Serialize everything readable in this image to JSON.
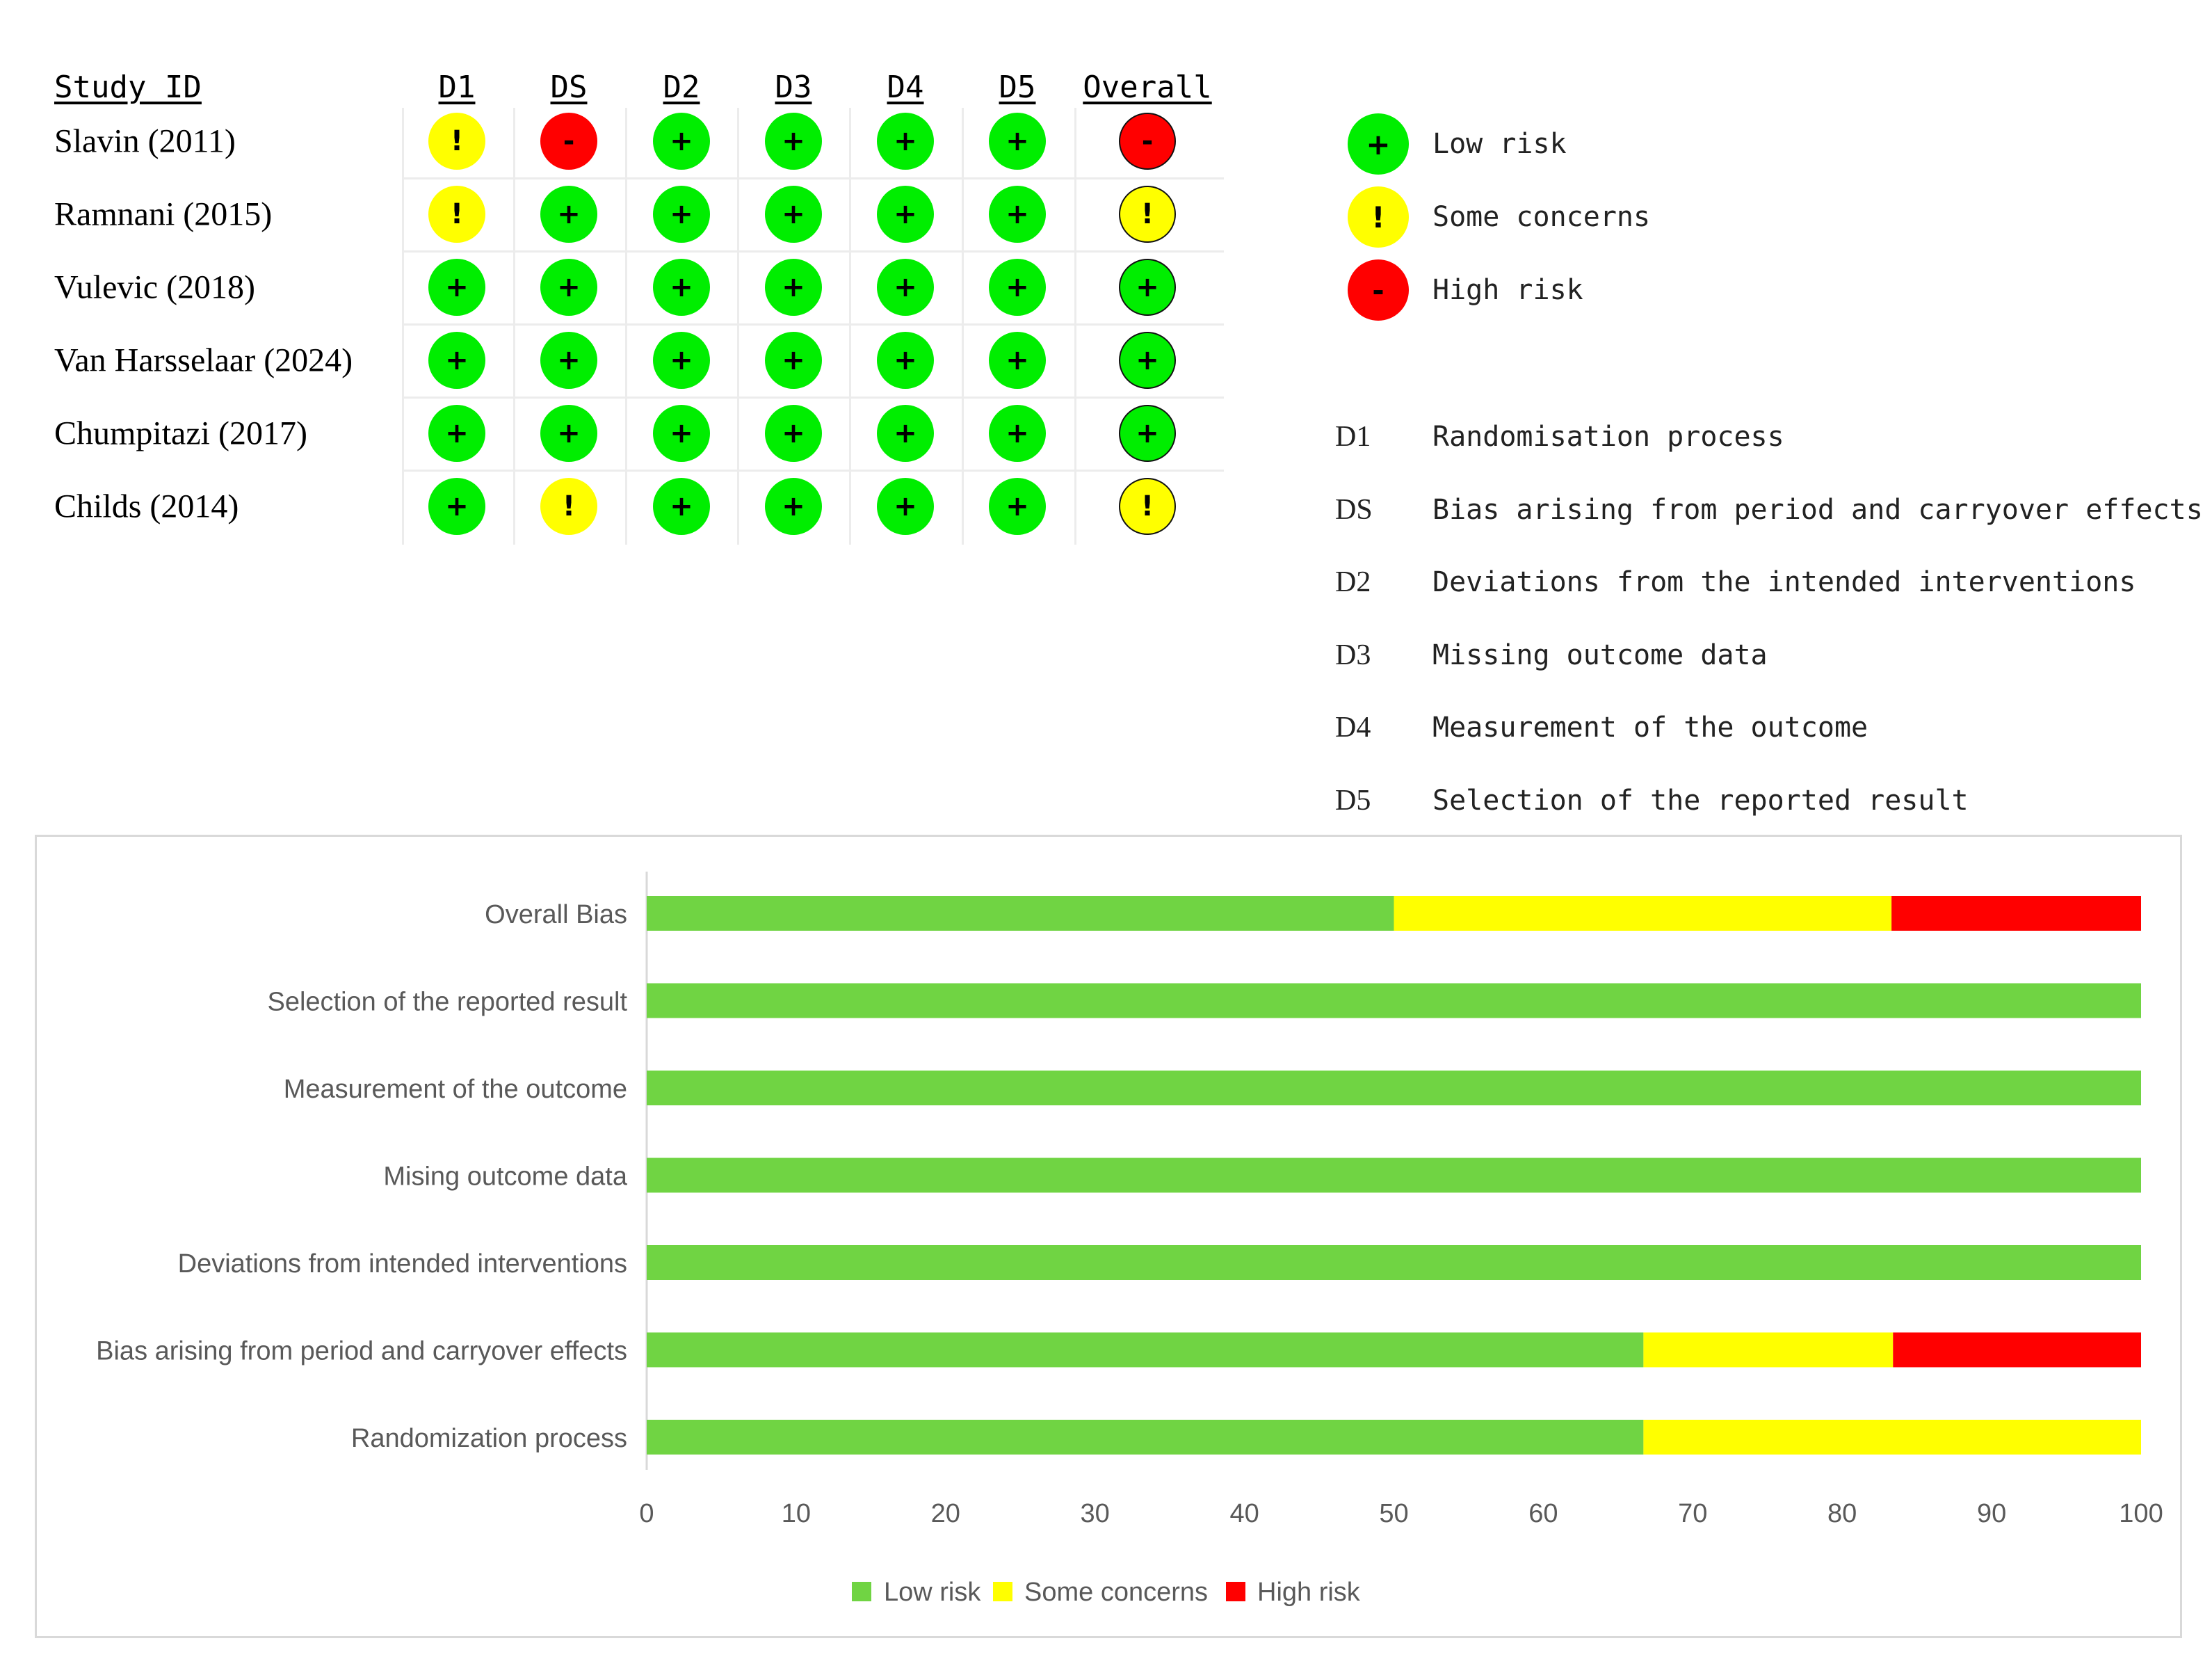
{
  "colors": {
    "low": "#00ee00",
    "some": "#ffff00",
    "high": "#ff0000"
  },
  "table": {
    "header": {
      "study_id": "Study ID"
    },
    "domains": [
      "D1",
      "DS",
      "D2",
      "D3",
      "D4",
      "D5",
      "Overall"
    ],
    "studies": [
      {
        "name": "Slavin (2011)",
        "judgements": [
          "some",
          "high",
          "low",
          "low",
          "low",
          "low",
          "high"
        ]
      },
      {
        "name": "Ramnani (2015)",
        "judgements": [
          "some",
          "low",
          "low",
          "low",
          "low",
          "low",
          "some"
        ]
      },
      {
        "name": "Vulevic (2018)",
        "judgements": [
          "low",
          "low",
          "low",
          "low",
          "low",
          "low",
          "low"
        ]
      },
      {
        "name": "Van Harsselaar (2024)",
        "judgements": [
          "low",
          "low",
          "low",
          "low",
          "low",
          "low",
          "low"
        ]
      },
      {
        "name": "Chumpitazi (2017)",
        "judgements": [
          "low",
          "low",
          "low",
          "low",
          "low",
          "low",
          "low"
        ]
      },
      {
        "name": "Childs (2014)",
        "judgements": [
          "low",
          "some",
          "low",
          "low",
          "low",
          "low",
          "some"
        ]
      }
    ],
    "symbols": {
      "low": "+",
      "some": "!",
      "high": "-"
    }
  },
  "legend": {
    "judgements": [
      {
        "key": "low",
        "symbol": "+",
        "label": "Low risk"
      },
      {
        "key": "some",
        "symbol": "!",
        "label": "Some concerns"
      },
      {
        "key": "high",
        "symbol": "-",
        "label": "High risk"
      }
    ],
    "domains": [
      {
        "code": "D1",
        "desc": "Randomisation process"
      },
      {
        "code": "DS",
        "desc": "Bias arising from period and carryover effects"
      },
      {
        "code": "D2",
        "desc": "Deviations from the intended interventions"
      },
      {
        "code": "D3",
        "desc": "Missing outcome data"
      },
      {
        "code": "D4",
        "desc": "Measurement of the outcome"
      },
      {
        "code": "D5",
        "desc": "Selection of the reported result"
      }
    ]
  },
  "chart_data": {
    "type": "bar",
    "orientation": "horizontal",
    "stacked": true,
    "categories": [
      "Overall Bias",
      "Selection of the reported result",
      "Measurement of the outcome",
      "Mising outcome data",
      "Deviations from intended interventions",
      "Bias arising from period and carryover effects",
      "Randomization process"
    ],
    "series": [
      {
        "name": "Low risk",
        "color": "#70d443",
        "values": [
          50,
          100,
          100,
          100,
          100,
          66.7,
          66.7
        ]
      },
      {
        "name": "Some concerns",
        "color": "#ffff00",
        "values": [
          33.3,
          0,
          0,
          0,
          0,
          16.7,
          33.3
        ]
      },
      {
        "name": "High risk",
        "color": "#ff0000",
        "values": [
          16.7,
          0,
          0,
          0,
          0,
          16.6,
          0
        ]
      }
    ],
    "xlim": [
      0,
      100
    ],
    "xticks": [
      0,
      10,
      20,
      30,
      40,
      50,
      60,
      70,
      80,
      90,
      100
    ],
    "legend_position": "bottom",
    "title": "",
    "xlabel": "",
    "ylabel": ""
  }
}
